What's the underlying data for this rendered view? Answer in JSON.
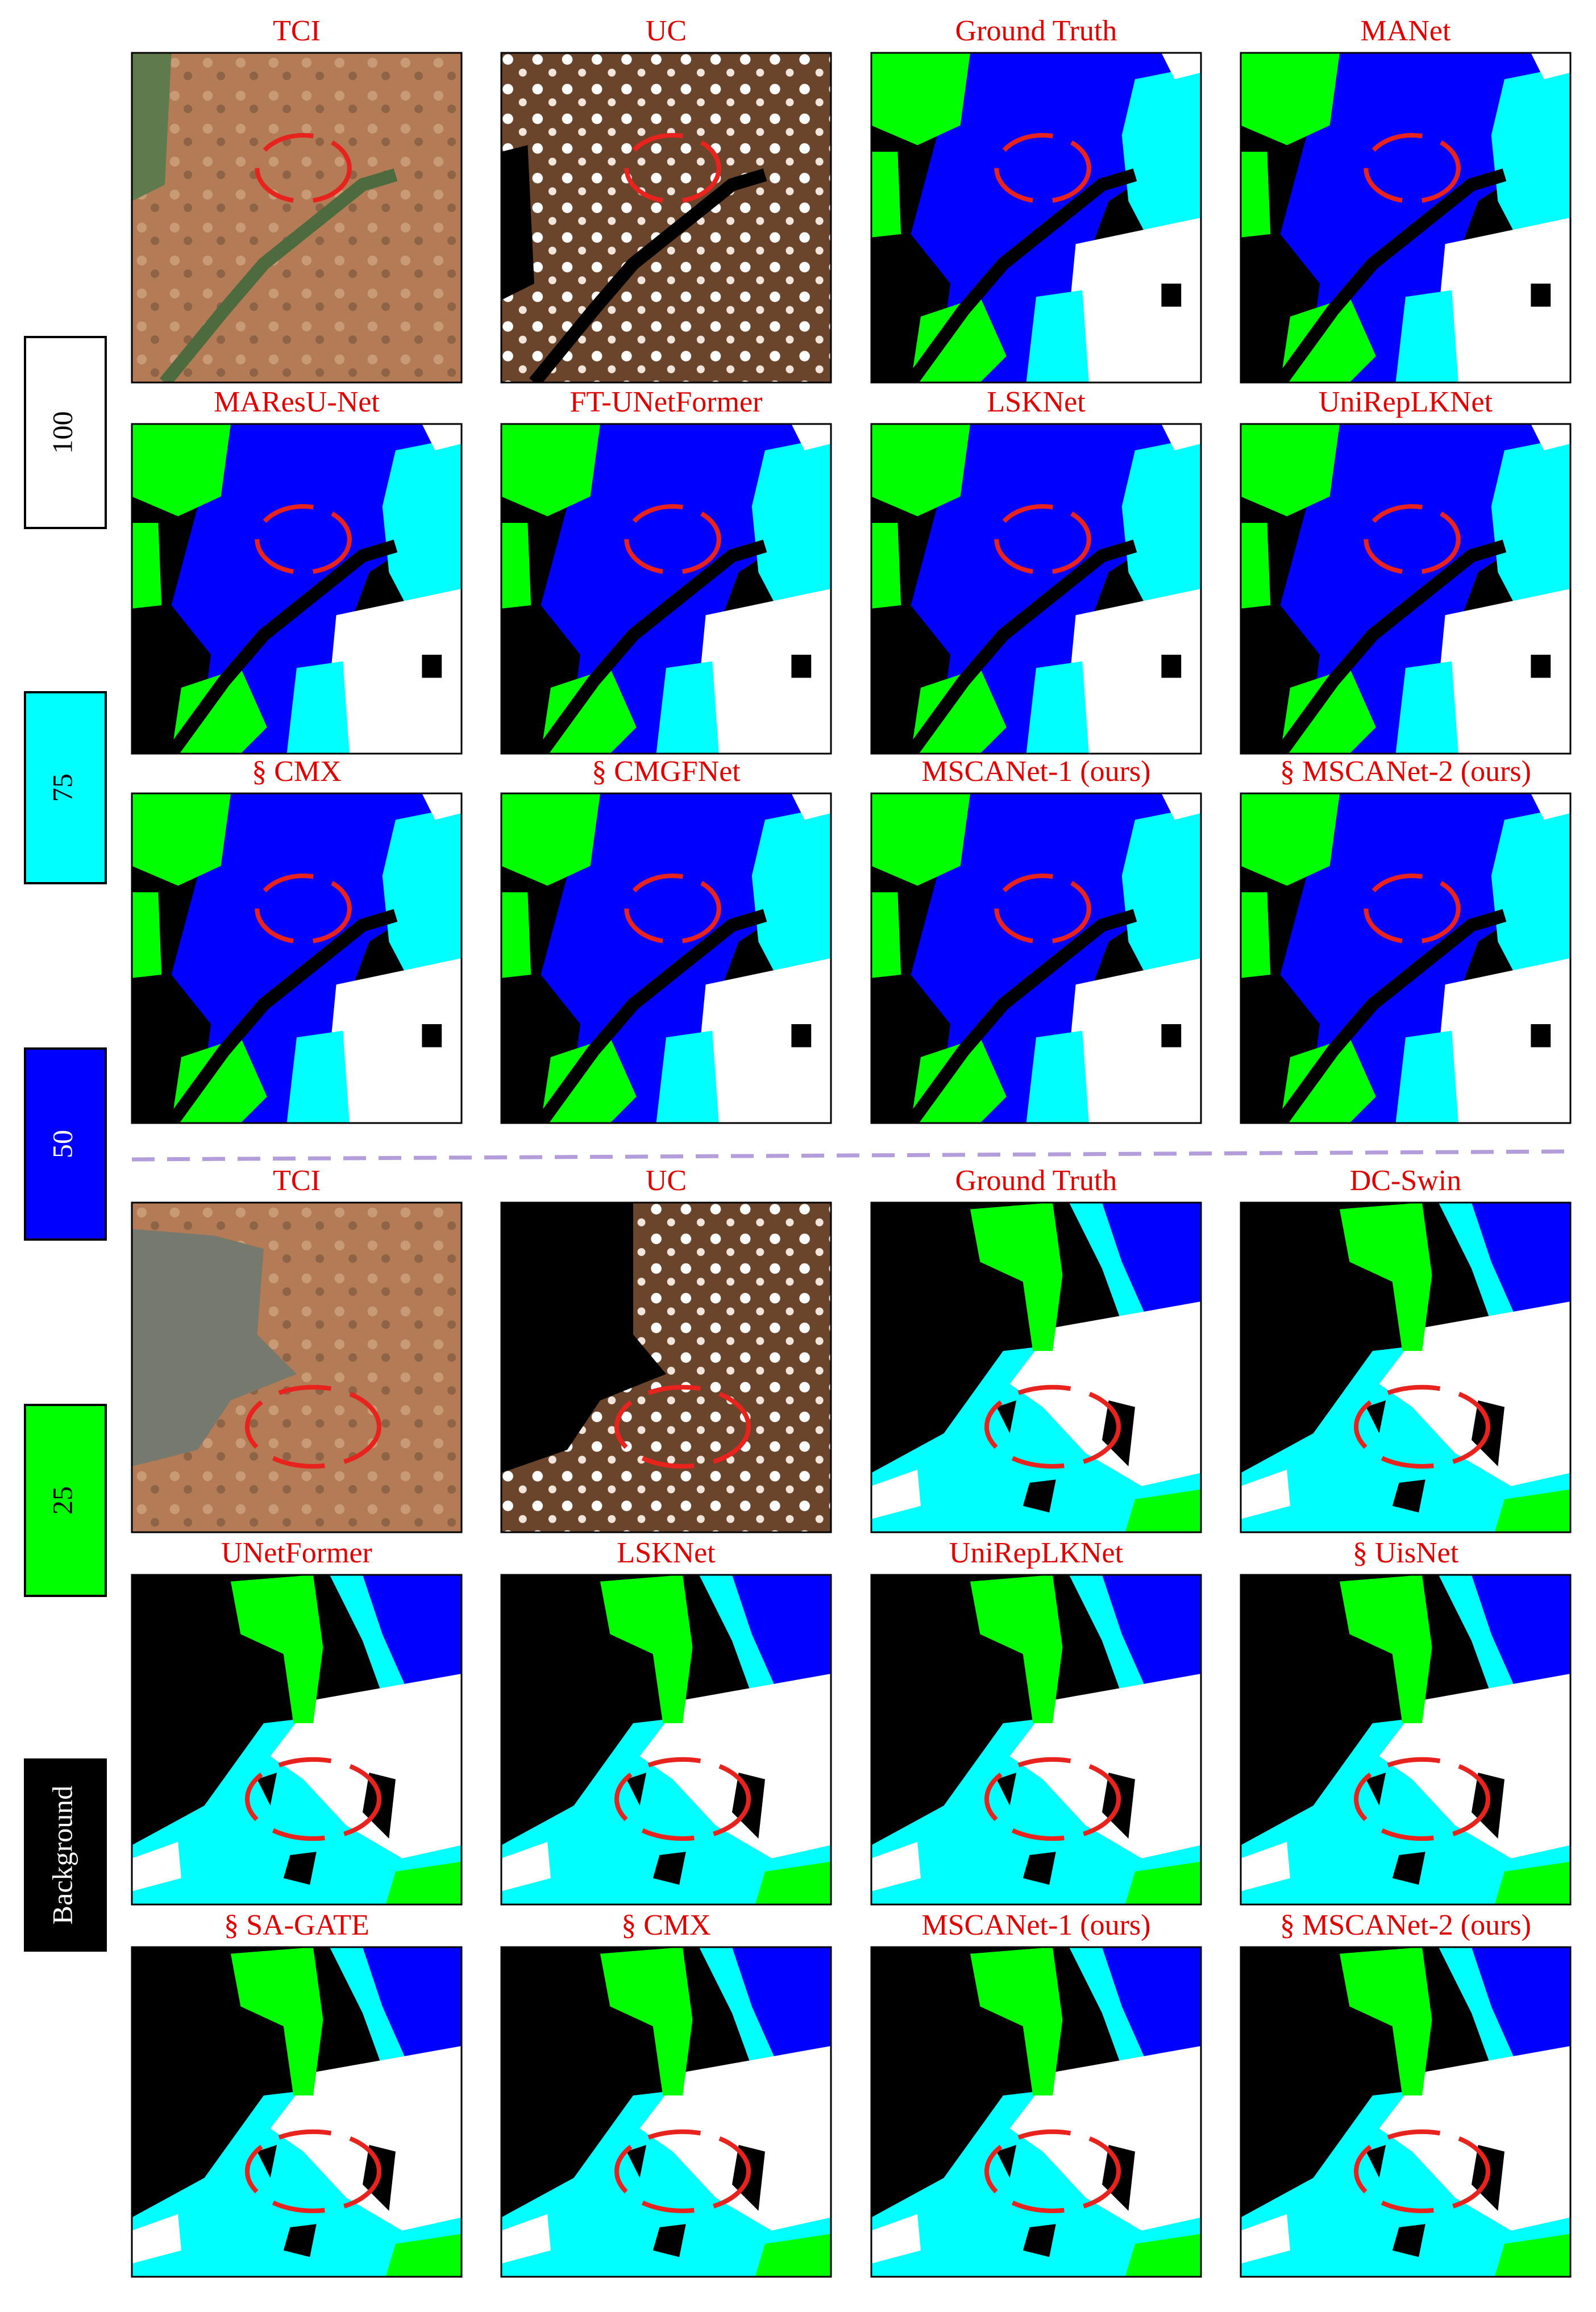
{
  "legend": [
    {
      "label": "100",
      "color": "#ffffff"
    },
    {
      "label": "75",
      "color": "#00ffff"
    },
    {
      "label": "50",
      "color": "#0000ff"
    },
    {
      "label": "25",
      "color": "#00ff00"
    },
    {
      "label": "Background",
      "color": "#000000"
    }
  ],
  "groups": [
    {
      "panels": [
        {
          "title": "TCI"
        },
        {
          "title": "UC"
        },
        {
          "title": "Ground Truth"
        },
        {
          "title": "MANet"
        },
        {
          "title": "MAResU-Net"
        },
        {
          "title": "FT-UNetFormer"
        },
        {
          "title": "LSKNet"
        },
        {
          "title": "UniRepLKNet"
        },
        {
          "title": "§ CMX"
        },
        {
          "title": "§ CMGFNet"
        },
        {
          "title": "MSCANet-1 (ours)"
        },
        {
          "title": "§ MSCANet-2 (ours)"
        }
      ]
    },
    {
      "panels": [
        {
          "title": "TCI"
        },
        {
          "title": "UC"
        },
        {
          "title": "Ground Truth"
        },
        {
          "title": "DC-Swin"
        },
        {
          "title": "UNetFormer"
        },
        {
          "title": "LSKNet"
        },
        {
          "title": "UniRepLKNet"
        },
        {
          "title": "§ UisNet"
        },
        {
          "title": "§ SA-GATE"
        },
        {
          "title": "§ CMX"
        },
        {
          "title": "MSCANet-1 (ours)"
        },
        {
          "title": "§ MSCANet-2 (ours)"
        }
      ]
    }
  ]
}
